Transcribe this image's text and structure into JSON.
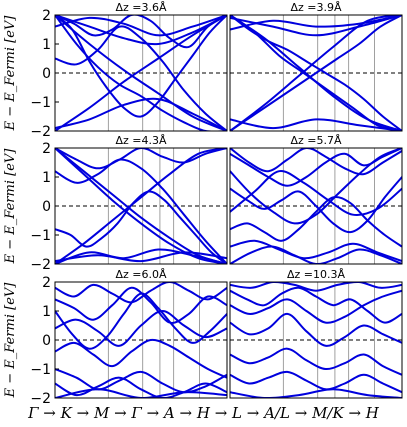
{
  "chart_data": [
    {
      "type": "line",
      "title": "Δz =3.6Å",
      "ylabel": "E − E_Fermi [eV]",
      "ylim": [
        -2,
        2
      ],
      "yticks": [
        "2",
        "1",
        "0",
        "−1",
        "−2"
      ],
      "fermi_level": 0,
      "series": [
        {
          "values": [
            2.0,
            1.0,
            0.2,
            -0.4,
            -0.8,
            -1.3,
            -1.7,
            -2.0,
            -2.0
          ]
        },
        {
          "values": [
            2.0,
            1.5,
            0.4,
            -0.5,
            -1.2,
            -1.5,
            -1.0,
            -0.2,
            0.6,
            1.4,
            2.0
          ]
        },
        {
          "values": [
            2.0,
            1.6,
            1.2,
            1.0,
            1.4,
            2.0
          ]
        },
        {
          "values": [
            -1.9,
            -1.6,
            -1.1,
            -0.9,
            -1.4,
            -2.0
          ]
        },
        {
          "values": [
            2.0,
            1.7,
            1.3,
            1.5,
            2.0,
            1.8,
            1.2,
            0.9,
            1.6,
            2.0
          ]
        },
        {
          "values": [
            0.5,
            0.3,
            0.8,
            1.6,
            1.2,
            0.4,
            -0.6,
            -1.4,
            -2.0
          ]
        },
        {
          "values": [
            -2.0,
            -1.2,
            -0.3,
            0.5,
            1.3,
            2.0
          ]
        },
        {
          "values": [
            2.0,
            1.0,
            0.1,
            -0.7,
            -1.5,
            -2.0
          ]
        },
        {
          "values": [
            1.6,
            1.9,
            1.7,
            1.3,
            1.6,
            2.0
          ]
        }
      ]
    },
    {
      "type": "line",
      "title": "Δz =3.9Å",
      "ylim": [
        -2,
        2
      ],
      "fermi_level": 0,
      "series": [
        {
          "values": [
            2.0,
            1.4,
            0.6,
            0.0,
            -0.6,
            -1.2,
            -1.8,
            -2.0
          ]
        },
        {
          "values": [
            -1.6,
            -1.9,
            -1.6,
            -1.8,
            -2.0
          ]
        },
        {
          "values": [
            1.5,
            1.8,
            1.6,
            1.7,
            2.0
          ]
        },
        {
          "values": [
            2.0,
            1.2,
            0.2,
            -0.8,
            -1.6,
            -2.0
          ]
        },
        {
          "values": [
            -2.0,
            -1.1,
            -0.1,
            0.9,
            1.8,
            2.0
          ]
        },
        {
          "values": [
            2.0,
            1.5,
            1.1,
            0.8,
            0.4,
            0.0,
            -0.4,
            -0.9,
            -1.5,
            -2.0
          ]
        },
        {
          "values": [
            -2.0,
            -1.5,
            -1.0,
            -0.5,
            0.0,
            0.5,
            1.0,
            1.6,
            2.0
          ]
        },
        {
          "values": [
            1.9,
            1.6,
            1.3,
            1.6,
            2.0
          ]
        }
      ]
    },
    {
      "type": "line",
      "title": "Δz =4.3Å",
      "ylabel": "E − E_Fermi [eV]",
      "ylim": [
        -2,
        2
      ],
      "yticks": [
        "2",
        "1",
        "0",
        "−1",
        "−2"
      ],
      "fermi_level": 0,
      "series": [
        {
          "values": [
            2.0,
            1.1,
            0.2,
            -0.6,
            -1.3,
            -1.8,
            -2.0
          ]
        },
        {
          "values": [
            -0.8,
            -1.0,
            -1.4,
            -1.1,
            -0.6,
            0.1,
            0.5,
            0.2,
            -0.4,
            -1.0,
            -1.6,
            -2.0
          ]
        },
        {
          "values": [
            2.0,
            1.6,
            1.3,
            1.6,
            2.0,
            1.7,
            1.5,
            1.8,
            2.0
          ]
        },
        {
          "values": [
            -2.0,
            -1.6,
            -1.8,
            -1.5,
            -1.7,
            -2.0
          ]
        },
        {
          "values": [
            1.2,
            0.8,
            1.1,
            1.6,
            1.3,
            0.6,
            -0.3,
            -1.2,
            -2.0
          ]
        },
        {
          "values": [
            -2.0,
            -1.3,
            -0.5,
            0.3,
            1.1,
            1.8,
            2.0
          ]
        },
        {
          "values": [
            2.0,
            1.2,
            0.4,
            -0.4,
            -1.1,
            -1.7,
            -2.0
          ]
        },
        {
          "values": [
            -1.9,
            -1.7,
            -1.9,
            -1.6,
            -1.8
          ]
        }
      ]
    },
    {
      "type": "line",
      "title": "Δz =5.7Å",
      "ylim": [
        -2,
        2
      ],
      "fermi_level": 0,
      "series": [
        {
          "values": [
            1.2,
            0.4,
            -0.2,
            -0.6,
            -0.3,
            0.4,
            1.1,
            1.7,
            2.0
          ]
        },
        {
          "values": [
            -0.8,
            -0.6,
            -0.9,
            -1.2,
            -0.8,
            -0.2,
            0.3,
            0.1,
            -0.5,
            -1.0,
            -1.4
          ]
        },
        {
          "values": [
            2.0,
            1.5,
            1.2,
            1.6,
            2.0,
            1.7,
            1.3,
            1.1,
            1.5,
            1.9
          ]
        },
        {
          "values": [
            -2.0,
            -1.6,
            -1.4,
            -1.7,
            -2.0,
            -1.8,
            -1.5,
            -1.7,
            -2.0
          ]
        },
        {
          "values": [
            0.6,
            0.2,
            -0.1,
            0.2,
            0.5,
            0.0,
            -0.6,
            -0.9,
            -0.5,
            0.3,
            1.0
          ]
        },
        {
          "values": [
            -1.4,
            -1.2,
            -1.5,
            -1.8,
            -1.6,
            -1.3,
            -1.6,
            -1.9
          ]
        },
        {
          "values": [
            1.8,
            1.4,
            1.0,
            0.7,
            1.0,
            1.5,
            1.8,
            1.4,
            1.7,
            2.0
          ]
        },
        {
          "values": [
            -0.2,
            0.5,
            1.2,
            0.8,
            0.2,
            -0.3,
            -0.1,
            0.6
          ]
        }
      ]
    },
    {
      "type": "line",
      "title": "Δz =6.0Å",
      "ylabel": "E − E_Fermi [eV]",
      "ylim": [
        -2,
        2
      ],
      "yticks": [
        "2",
        "1",
        "0",
        "−1",
        "−2"
      ],
      "fermi_level": 0,
      "series": [
        {
          "values": [
            1.0,
            0.2,
            -0.3,
            0.1,
            0.9,
            1.6,
            1.1,
            0.4,
            -0.1,
            0.3,
            0.9
          ]
        },
        {
          "values": [
            -0.4,
            -0.1,
            -0.5,
            -0.9,
            -0.4,
            0.0,
            -0.2,
            -0.6,
            -1.0,
            -1.3
          ]
        },
        {
          "values": [
            1.8,
            1.5,
            1.9,
            1.6,
            1.3,
            1.7,
            2.0,
            1.7,
            1.4,
            1.8
          ]
        },
        {
          "values": [
            -1.5,
            -1.9,
            -1.6,
            -1.3,
            -1.7,
            -2.0,
            -1.8,
            -1.5,
            -1.8
          ]
        },
        {
          "values": [
            1.4,
            1.1,
            0.7,
            1.2,
            1.8,
            1.3,
            0.6,
            0.9,
            1.5,
            1.2
          ]
        },
        {
          "values": [
            -1.0,
            -1.3,
            -1.7,
            -1.4,
            -1.1,
            -1.5,
            -1.8,
            -1.6,
            -1.2
          ]
        },
        {
          "values": [
            0.4,
            0.7,
            0.3,
            -0.2,
            0.5,
            1.0,
            0.5,
            0.1,
            0.4
          ]
        },
        {
          "values": [
            -2.0,
            -1.7,
            -2.0,
            -1.8,
            -1.9
          ]
        }
      ]
    },
    {
      "type": "line",
      "title": "Δz =10.3Å",
      "ylim": [
        -2,
        2
      ],
      "fermi_level": 0,
      "series": [
        {
          "values": [
            1.7,
            1.4,
            1.2,
            1.6,
            1.8,
            1.5,
            1.2,
            1.4,
            1.0,
            0.6,
            0.9
          ]
        },
        {
          "values": [
            1.2,
            0.9,
            1.1,
            1.4,
            1.0,
            0.6,
            0.8,
            1.2,
            1.5,
            1.7
          ]
        },
        {
          "values": [
            0.6,
            0.2,
            0.4,
            0.9,
            0.3,
            -0.2,
            0.1,
            0.5,
            0.2,
            -0.1
          ]
        },
        {
          "values": [
            -0.5,
            -0.8,
            -0.6,
            -0.3,
            -0.7,
            -1.0,
            -0.8,
            -0.5,
            -0.9,
            -1.2
          ]
        },
        {
          "values": [
            -1.2,
            -1.5,
            -1.3,
            -1.1,
            -1.4,
            -1.7,
            -1.5,
            -1.2,
            -1.5,
            -1.8
          ]
        },
        {
          "values": [
            -1.8,
            -2.0,
            -1.9,
            -1.7,
            -1.9,
            -2.0
          ]
        },
        {
          "values": [
            1.9,
            1.8,
            2.0,
            1.9,
            1.7,
            1.9,
            2.0,
            1.8,
            1.9
          ]
        }
      ]
    }
  ],
  "x_path_label": "Γ → K → M → Γ → A → H → L → A/L → M/K → H",
  "style": {
    "band_color": "#0000dd",
    "fermi_color": "#000000",
    "vline_color": "#888888"
  }
}
